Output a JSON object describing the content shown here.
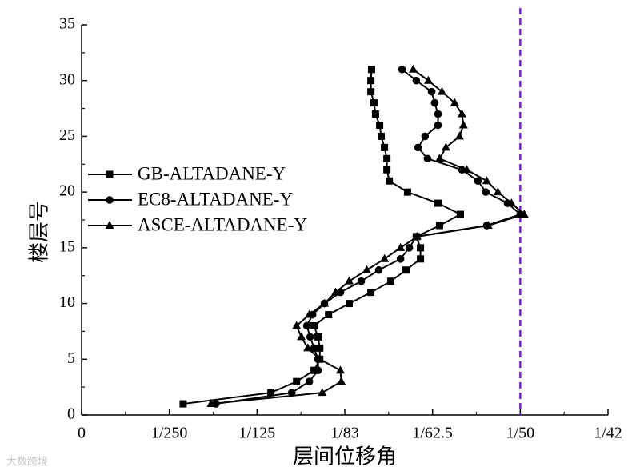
{
  "chart_data": {
    "type": "line",
    "orientation": "horizontal",
    "x_label": "层间位移角",
    "y_label": "楼层号",
    "xlim": [
      0,
      0.024
    ],
    "xticks": [
      {
        "value": 0,
        "label": "0"
      },
      {
        "value": 0.004,
        "label": "1/250"
      },
      {
        "value": 0.008,
        "label": "1/125"
      },
      {
        "value": 0.012,
        "label": "1/83"
      },
      {
        "value": 0.016,
        "label": "1/62.5"
      },
      {
        "value": 0.02,
        "label": "1/50"
      },
      {
        "value": 0.024,
        "label": "1/42"
      }
    ],
    "ylim": [
      0,
      35
    ],
    "yticks": [
      0,
      5,
      10,
      15,
      20,
      25,
      30,
      35
    ],
    "y": [
      1,
      2,
      3,
      4,
      5,
      6,
      7,
      8,
      9,
      10,
      11,
      12,
      13,
      14,
      15,
      16,
      17,
      18,
      19,
      20,
      21,
      22,
      23,
      24,
      25,
      26,
      27,
      28,
      29,
      30,
      31
    ],
    "reference_line": {
      "value": 0.02,
      "color": "#7a1fd2"
    },
    "watermark": "大数跨境",
    "series": [
      {
        "name": "GB-ALTADANE-Y",
        "color": "#000000",
        "marker": "square",
        "values": [
          0.00463,
          0.00863,
          0.0098,
          0.0106,
          0.01086,
          0.01086,
          0.01078,
          0.0106,
          0.01126,
          0.0122,
          0.01319,
          0.0141,
          0.01479,
          0.01545,
          0.01545,
          0.01526,
          0.01632,
          0.01727,
          0.01625,
          0.01486,
          0.01403,
          0.01392,
          0.01392,
          0.01381,
          0.01366,
          0.01359,
          0.0134,
          0.01333,
          0.01319,
          0.01319,
          0.01322
        ]
      },
      {
        "name": "EC8-ALTADANE-Y",
        "color": "#000000",
        "marker": "circle",
        "values": [
          0.00612,
          0.00958,
          0.01038,
          0.01078,
          0.01078,
          0.0106,
          0.01042,
          0.01027,
          0.01053,
          0.01107,
          0.0118,
          0.01275,
          0.01355,
          0.01454,
          0.01494,
          0.01526,
          0.01847,
          0.02,
          0.01942,
          0.01843,
          0.01807,
          0.01734,
          0.01577,
          0.01534,
          0.01566,
          0.01625,
          0.01625,
          0.0161,
          0.01596,
          0.01526,
          0.01461
        ]
      },
      {
        "name": "ASCE-ALTADANE-Y",
        "color": "#000000",
        "marker": "triangle",
        "values": [
          0.0059,
          0.01097,
          0.01184,
          0.0118,
          0.01086,
          0.01031,
          0.01002,
          0.0098,
          0.01038,
          0.01107,
          0.01158,
          0.0122,
          0.013,
          0.01381,
          0.01454,
          0.0153,
          0.01854,
          0.02018,
          0.0196,
          0.01898,
          0.01847,
          0.01756,
          0.01632,
          0.01661,
          0.01723,
          0.01741,
          0.01734,
          0.01701,
          0.01643,
          0.01581,
          0.01512
        ]
      }
    ]
  }
}
